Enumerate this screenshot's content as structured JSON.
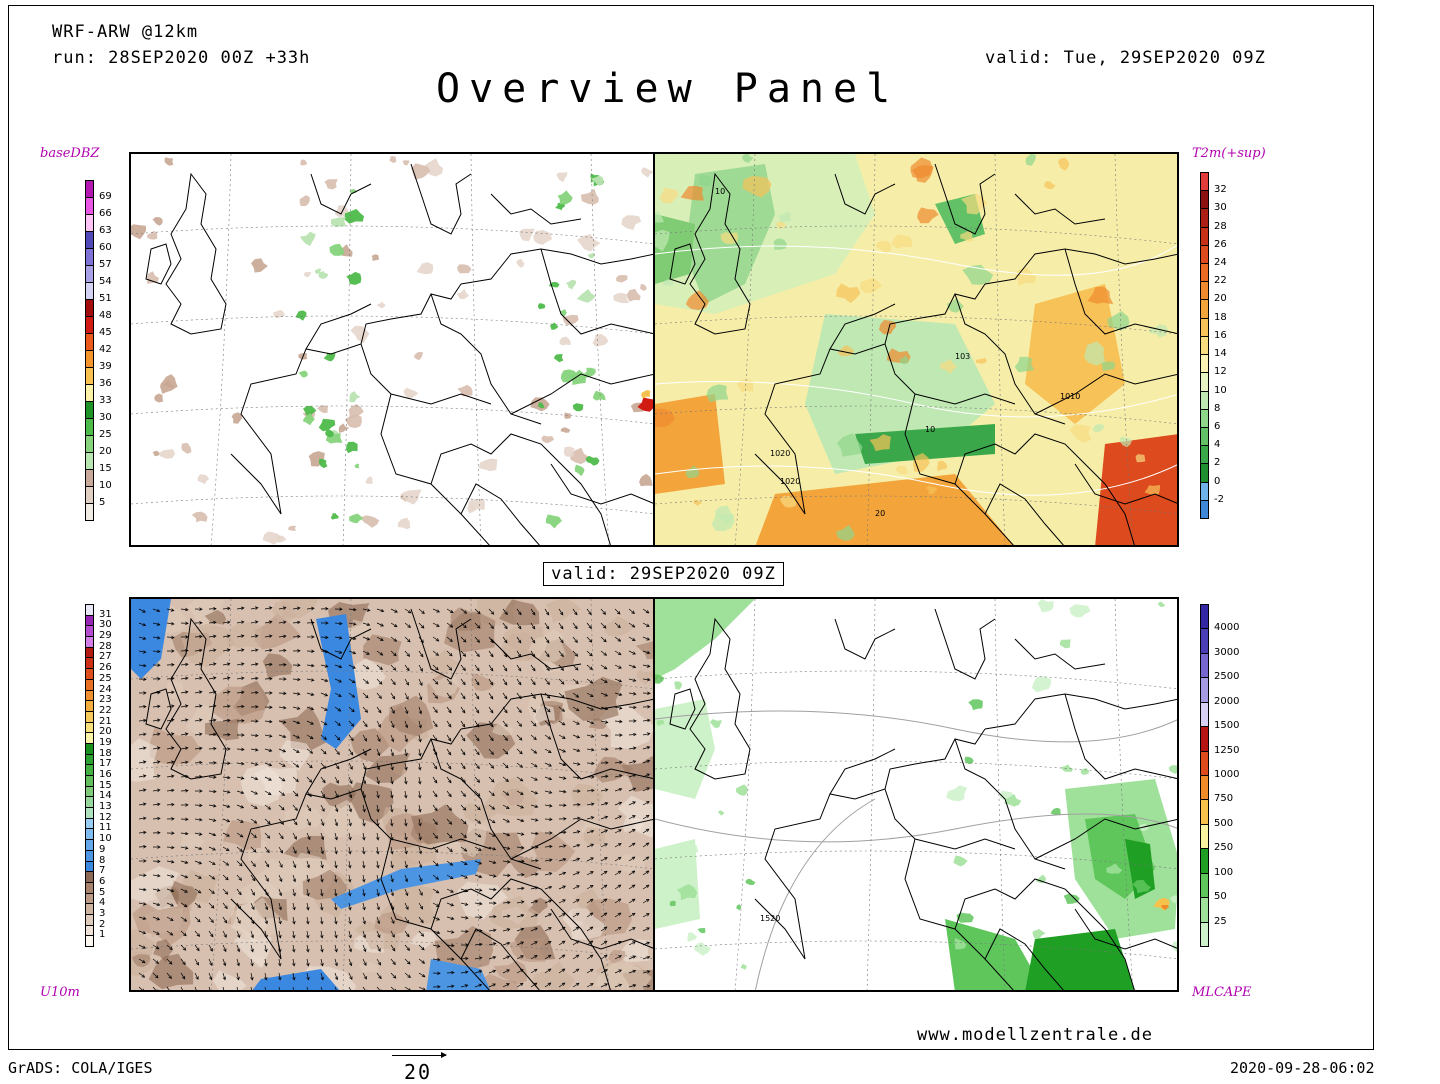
{
  "header": {
    "model": "WRF-ARW @12km",
    "run": "run: 28SEP2020 00Z +33h",
    "valid": "valid: Tue, 29SEP2020 09Z",
    "title": "Overview Panel"
  },
  "center_valid": "valid: 29SEP2020 09Z",
  "footer": {
    "grads": "GrADS: COLA/IGES",
    "timestamp": "2020-09-28-06:02",
    "website": "www.modellzentrale.de",
    "vector_ref": "20"
  },
  "panels": {
    "dbz": {
      "title": "baseDBZ",
      "levels": [
        "5",
        "10",
        "15",
        "20",
        "25",
        "30",
        "33",
        "36",
        "39",
        "42",
        "45",
        "48",
        "51",
        "54",
        "57",
        "60",
        "63",
        "66",
        "69"
      ],
      "colors": [
        "#f1ebe6",
        "#e1cfc3",
        "#c9a999",
        "#b8e6b0",
        "#86d47c",
        "#4dbb4a",
        "#1f9426",
        "#fbf2a7",
        "#f7c150",
        "#f3952a",
        "#ec5a1b",
        "#d11b12",
        "#a30c0c",
        "#d4d2f2",
        "#a9a2e6",
        "#7e72d6",
        "#5148b8",
        "#ffc4f4",
        "#e856e3",
        "#b416b1"
      ]
    },
    "t2m": {
      "title": "T2m(+sup)",
      "levels": [
        "-2",
        "0",
        "2",
        "4",
        "6",
        "8",
        "10",
        "12",
        "14",
        "16",
        "18",
        "20",
        "22",
        "24",
        "26",
        "28",
        "30",
        "32"
      ],
      "colors": [
        "#3f88d8",
        "#6fb2ea",
        "#1f8f30",
        "#3aa84a",
        "#62c066",
        "#8fd68c",
        "#bfe8b2",
        "#e6f4c4",
        "#faf3b3",
        "#f8dc80",
        "#f7c258",
        "#f3a53c",
        "#ef8a2e",
        "#ea6a24",
        "#dd4a1e",
        "#c73118",
        "#ad1e14",
        "#8c1010",
        "#e03c3c"
      ],
      "contour_labels": [
        "10",
        "1020",
        "1010",
        "1020",
        "20",
        "10",
        "103"
      ]
    },
    "u10": {
      "title": "U10m",
      "levels": [
        "1",
        "2",
        "3",
        "4",
        "5",
        "6",
        "7",
        "8",
        "9",
        "10",
        "11",
        "12",
        "13",
        "14",
        "15",
        "16",
        "17",
        "18",
        "19",
        "20",
        "21",
        "22",
        "23",
        "24",
        "25",
        "26",
        "27",
        "28",
        "29",
        "30",
        "31"
      ],
      "colors": [
        "#fbf6ef",
        "#eee2d6",
        "#dfcbbb",
        "#cfb3a1",
        "#bc9a86",
        "#a8836e",
        "#8d6a55",
        "#3b88e0",
        "#4c95e3",
        "#66a9ea",
        "#80bcef",
        "#9acdf3",
        "#aee1bd",
        "#96d79b",
        "#7ecc7a",
        "#62bf5c",
        "#44b042",
        "#2aa02e",
        "#179020",
        "#fbf3a6",
        "#f8e07c",
        "#f6c95a",
        "#f2ad3c",
        "#ef902c",
        "#e96f22",
        "#de4d1c",
        "#cc2f16",
        "#b31a12",
        "#d27ee6",
        "#b54ccf",
        "#9624b5",
        "#e7e7f5"
      ]
    },
    "cape": {
      "title": "MLCAPE",
      "levels": [
        "25",
        "50",
        "100",
        "250",
        "500",
        "750",
        "1000",
        "1250",
        "1500",
        "2000",
        "2500",
        "3000",
        "4000"
      ],
      "colors": [
        "#cdf1c8",
        "#9fe09a",
        "#5fc65c",
        "#1f9f24",
        "#f8f4a0",
        "#f6c24c",
        "#f08b2a",
        "#dd4a1c",
        "#b51414",
        "#d7d0f2",
        "#a69ae3",
        "#7766cf",
        "#4a3db5",
        "#3327a3"
      ],
      "contour_label": "1520"
    }
  }
}
